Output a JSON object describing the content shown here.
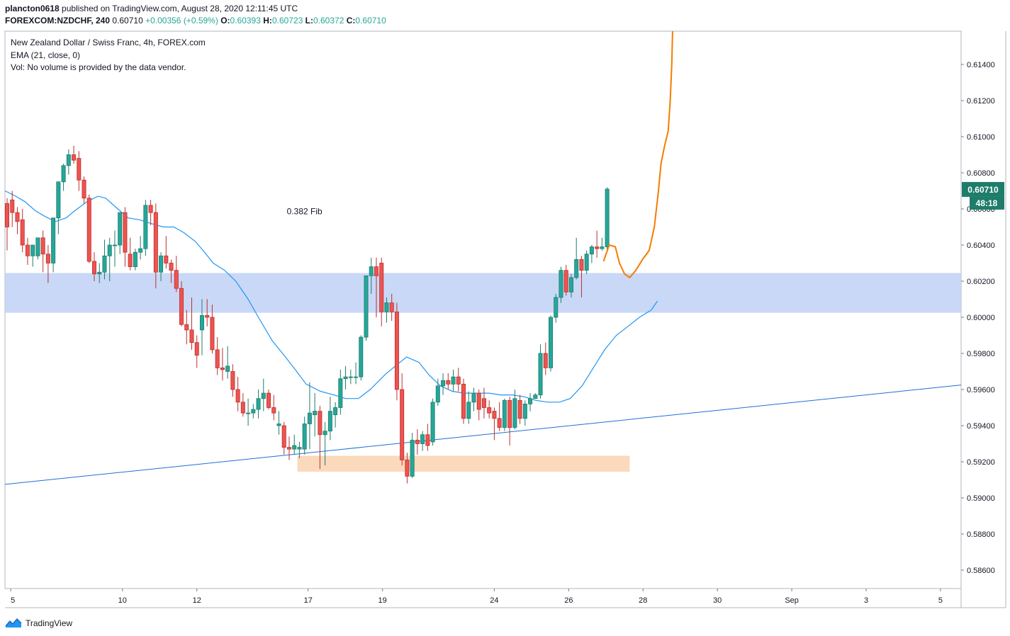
{
  "header": {
    "user": "plancton0618",
    "published": "published on TradingView.com, August 28, 2020 12:11:45 UTC",
    "symbol": "FOREXCOM:NZDCHF, 240",
    "last": "0.60710",
    "change": "+0.00356 (+0.59%)",
    "o_label": "O:",
    "o_value": "0.60393",
    "h_label": "H:",
    "h_value": "0.60723",
    "l_label": "L:",
    "l_value": "0.60372",
    "c_label": "C:",
    "c_value": "0.60710"
  },
  "legend": [
    "New Zealand Dollar / Swiss Franc, 4h, FOREX.com",
    "EMA (21, close, 0)",
    "Vol: No volume is provided by the data vendor."
  ],
  "footer": {
    "brand": "TradingView"
  },
  "colors": {
    "up": "#26a69a",
    "down": "#ef5350",
    "up_body": "#1e7d6a",
    "down_body": "#b7322f",
    "ema": "#2196f3",
    "trendline": "#1e6fd9",
    "projection": "#f57c00",
    "resistance_zone": "#c9d8f7",
    "support_zone": "#fbd9bb"
  },
  "chart_data": {
    "type": "candlestick",
    "timeframe": "4h",
    "ylim": [
      0.5848,
      0.6163
    ],
    "y_ticks": [
      "0.58600",
      "0.58800",
      "0.59000",
      "0.59200",
      "0.59400",
      "0.59600",
      "0.59800",
      "0.60000",
      "0.60200",
      "0.60400",
      "0.60600",
      "0.60800",
      "0.61000",
      "0.61200",
      "0.61400"
    ],
    "x_ticks": [
      {
        "label": "5",
        "i": 0.7
      },
      {
        "label": "10",
        "i": 22.5
      },
      {
        "label": "12",
        "i": 37
      },
      {
        "label": "17",
        "i": 58.7
      },
      {
        "label": "19",
        "i": 73.2
      },
      {
        "label": "24",
        "i": 95
      },
      {
        "label": "26",
        "i": 109.5
      },
      {
        "label": "28",
        "i": 124
      },
      {
        "label": "30",
        "i": 138.5
      },
      {
        "label": "Sep",
        "i": 153
      },
      {
        "label": "3",
        "i": 167.5
      },
      {
        "label": "5",
        "i": 182
      }
    ],
    "price_label": "0.60710",
    "countdown": "48:18",
    "annotations": [
      {
        "text": "0.382 Fib",
        "i": 58,
        "price": 0.6057
      }
    ],
    "zones": [
      {
        "type": "resistance",
        "i0": -0.4,
        "i1": 186,
        "price_top": 0.60245,
        "price_bottom": 0.60025
      },
      {
        "type": "support",
        "i0": 56.6,
        "i1": 121.4,
        "price_top": 0.59233,
        "price_bottom": 0.59145
      }
    ],
    "trendline": {
      "i0": -0.4,
      "p0": 0.59075,
      "i1": 186,
      "p1": 0.59625
    },
    "projection": [
      [
        116.3,
        0.6031
      ],
      [
        117.4,
        0.604
      ],
      [
        118.6,
        0.6039
      ],
      [
        119.4,
        0.603
      ],
      [
        120.4,
        0.6024
      ],
      [
        121.4,
        0.6022
      ],
      [
        122.6,
        0.6026
      ],
      [
        123.9,
        0.6032
      ],
      [
        125.2,
        0.6037
      ],
      [
        126.2,
        0.605
      ],
      [
        127.0,
        0.607
      ],
      [
        127.5,
        0.6085
      ],
      [
        128.2,
        0.6095
      ],
      [
        128.9,
        0.6103
      ],
      [
        129.3,
        0.612
      ],
      [
        129.6,
        0.614
      ],
      [
        129.8,
        0.6163
      ]
    ],
    "ema": [
      [
        -0.4,
        0.607
      ],
      [
        1.7,
        0.6067
      ],
      [
        3.5,
        0.6064
      ],
      [
        5.5,
        0.6059
      ],
      [
        7.3,
        0.6056
      ],
      [
        9.4,
        0.6053
      ],
      [
        11.5,
        0.6055
      ],
      [
        13.2,
        0.6059
      ],
      [
        15.6,
        0.6064
      ],
      [
        17.7,
        0.6067
      ],
      [
        19.2,
        0.6066
      ],
      [
        21.2,
        0.6061
      ],
      [
        23.6,
        0.6055
      ],
      [
        25.8,
        0.6054
      ],
      [
        28.0,
        0.6052
      ],
      [
        30.5,
        0.605
      ],
      [
        32.5,
        0.605
      ],
      [
        34.4,
        0.6047
      ],
      [
        36.7,
        0.6042
      ],
      [
        38.5,
        0.6036
      ],
      [
        40.2,
        0.603
      ],
      [
        42.4,
        0.6026
      ],
      [
        44.6,
        0.602
      ],
      [
        47.0,
        0.601
      ],
      [
        49.0,
        0.6
      ],
      [
        51.7,
        0.5987
      ],
      [
        54.0,
        0.5979
      ],
      [
        56.2,
        0.5971
      ],
      [
        58.3,
        0.5963
      ],
      [
        61.1,
        0.5959
      ],
      [
        63.7,
        0.5957
      ],
      [
        66.0,
        0.5955
      ],
      [
        68.5,
        0.5955
      ],
      [
        70.8,
        0.596
      ],
      [
        73.6,
        0.5968
      ],
      [
        76.1,
        0.5974
      ],
      [
        77.9,
        0.5978
      ],
      [
        80.3,
        0.5975
      ],
      [
        82.3,
        0.5968
      ],
      [
        84.5,
        0.5962
      ],
      [
        86.8,
        0.5959
      ],
      [
        89.1,
        0.5958
      ],
      [
        91.6,
        0.5958
      ],
      [
        94.0,
        0.5958
      ],
      [
        96.2,
        0.5957
      ],
      [
        98.5,
        0.5957
      ],
      [
        100.8,
        0.5956
      ],
      [
        103.1,
        0.5954
      ],
      [
        105.4,
        0.5953
      ],
      [
        107.7,
        0.5953
      ],
      [
        109.8,
        0.5955
      ],
      [
        112.1,
        0.5962
      ],
      [
        114.3,
        0.5972
      ],
      [
        116.5,
        0.5982
      ],
      [
        118.8,
        0.599
      ],
      [
        121.1,
        0.5995
      ],
      [
        123.3,
        0.6
      ],
      [
        125.6,
        0.6004
      ],
      [
        126.8,
        0.6009
      ]
    ],
    "candles": [
      {
        "i": 0,
        "o": 0.6063,
        "h": 0.6066,
        "l": 0.6037,
        "c": 0.605
      },
      {
        "i": 1,
        "o": 0.6065,
        "h": 0.607,
        "l": 0.605,
        "c": 0.6058
      },
      {
        "i": 2,
        "o": 0.6058,
        "h": 0.6061,
        "l": 0.6046,
        "c": 0.6053
      },
      {
        "i": 3,
        "o": 0.6054,
        "h": 0.606,
        "l": 0.6036,
        "c": 0.604
      },
      {
        "i": 4,
        "o": 0.604,
        "h": 0.6044,
        "l": 0.6029,
        "c": 0.6034
      },
      {
        "i": 5,
        "o": 0.6034,
        "h": 0.604,
        "l": 0.6028,
        "c": 0.604
      },
      {
        "i": 6,
        "o": 0.6034,
        "h": 0.6044,
        "l": 0.6032,
        "c": 0.6044
      },
      {
        "i": 7,
        "o": 0.6044,
        "h": 0.6048,
        "l": 0.6025,
        "c": 0.6035
      },
      {
        "i": 8,
        "o": 0.6035,
        "h": 0.604,
        "l": 0.6019,
        "c": 0.603
      },
      {
        "i": 9,
        "o": 0.603,
        "h": 0.6055,
        "l": 0.6025,
        "c": 0.6055
      },
      {
        "i": 10,
        "o": 0.6055,
        "h": 0.6075,
        "l": 0.6046,
        "c": 0.6075
      },
      {
        "i": 11,
        "o": 0.6075,
        "h": 0.6085,
        "l": 0.607,
        "c": 0.6084
      },
      {
        "i": 12,
        "o": 0.6084,
        "h": 0.6093,
        "l": 0.6079,
        "c": 0.609
      },
      {
        "i": 13,
        "o": 0.609,
        "h": 0.6095,
        "l": 0.6085,
        "c": 0.6087
      },
      {
        "i": 14,
        "o": 0.6088,
        "h": 0.6092,
        "l": 0.607,
        "c": 0.6076
      },
      {
        "i": 15,
        "o": 0.6076,
        "h": 0.6078,
        "l": 0.6063,
        "c": 0.6066
      },
      {
        "i": 16,
        "o": 0.6066,
        "h": 0.6068,
        "l": 0.603,
        "c": 0.6031
      },
      {
        "i": 17,
        "o": 0.6031,
        "h": 0.6036,
        "l": 0.602,
        "c": 0.6024
      },
      {
        "i": 18,
        "o": 0.6024,
        "h": 0.603,
        "l": 0.6019,
        "c": 0.6025
      },
      {
        "i": 19,
        "o": 0.6025,
        "h": 0.6043,
        "l": 0.6021,
        "c": 0.6034
      },
      {
        "i": 20,
        "o": 0.6034,
        "h": 0.6044,
        "l": 0.602,
        "c": 0.604
      },
      {
        "i": 21,
        "o": 0.604,
        "h": 0.6048,
        "l": 0.6028,
        "c": 0.604
      },
      {
        "i": 22,
        "o": 0.604,
        "h": 0.6058,
        "l": 0.6035,
        "c": 0.6058
      },
      {
        "i": 23,
        "o": 0.6058,
        "h": 0.6061,
        "l": 0.6028,
        "c": 0.6036
      },
      {
        "i": 24,
        "o": 0.6035,
        "h": 0.6044,
        "l": 0.6026,
        "c": 0.6028
      },
      {
        "i": 25,
        "o": 0.6028,
        "h": 0.6038,
        "l": 0.6026,
        "c": 0.6036
      },
      {
        "i": 26,
        "o": 0.6036,
        "h": 0.6045,
        "l": 0.6032,
        "c": 0.6038
      },
      {
        "i": 27,
        "o": 0.6038,
        "h": 0.6065,
        "l": 0.6034,
        "c": 0.6062
      },
      {
        "i": 28,
        "o": 0.6062,
        "h": 0.6065,
        "l": 0.6051,
        "c": 0.6058
      },
      {
        "i": 29,
        "o": 0.6058,
        "h": 0.6063,
        "l": 0.6016,
        "c": 0.6025
      },
      {
        "i": 30,
        "o": 0.6025,
        "h": 0.6036,
        "l": 0.602,
        "c": 0.6034
      },
      {
        "i": 31,
        "o": 0.6034,
        "h": 0.6045,
        "l": 0.6027,
        "c": 0.603
      },
      {
        "i": 32,
        "o": 0.603,
        "h": 0.6032,
        "l": 0.6019,
        "c": 0.6026
      },
      {
        "i": 33,
        "o": 0.6026,
        "h": 0.6034,
        "l": 0.6014,
        "c": 0.6016
      },
      {
        "i": 34,
        "o": 0.6016,
        "h": 0.602,
        "l": 0.5995,
        "c": 0.5996
      },
      {
        "i": 35,
        "o": 0.5996,
        "h": 0.6004,
        "l": 0.5985,
        "c": 0.5993
      },
      {
        "i": 36,
        "o": 0.5993,
        "h": 0.6011,
        "l": 0.5982,
        "c": 0.5986
      },
      {
        "i": 37,
        "o": 0.5986,
        "h": 0.599,
        "l": 0.5972,
        "c": 0.5979
      },
      {
        "i": 38,
        "o": 0.5993,
        "h": 0.601,
        "l": 0.5979,
        "c": 0.6001
      },
      {
        "i": 39,
        "o": 0.6001,
        "h": 0.601,
        "l": 0.5995,
        "c": 0.6
      },
      {
        "i": 40,
        "o": 0.6,
        "h": 0.6007,
        "l": 0.598,
        "c": 0.5982
      },
      {
        "i": 41,
        "o": 0.5982,
        "h": 0.5989,
        "l": 0.5968,
        "c": 0.5972
      },
      {
        "i": 42,
        "o": 0.5972,
        "h": 0.5983,
        "l": 0.5965,
        "c": 0.5971
      },
      {
        "i": 43,
        "o": 0.597,
        "h": 0.5984,
        "l": 0.5966,
        "c": 0.5973
      },
      {
        "i": 44,
        "o": 0.597,
        "h": 0.5974,
        "l": 0.5956,
        "c": 0.596
      },
      {
        "i": 45,
        "o": 0.596,
        "h": 0.5967,
        "l": 0.5948,
        "c": 0.5953
      },
      {
        "i": 46,
        "o": 0.5953,
        "h": 0.5958,
        "l": 0.5945,
        "c": 0.5947
      },
      {
        "i": 47,
        "o": 0.5947,
        "h": 0.5955,
        "l": 0.594,
        "c": 0.5947
      },
      {
        "i": 48,
        "o": 0.5947,
        "h": 0.5952,
        "l": 0.5944,
        "c": 0.5949
      },
      {
        "i": 49,
        "o": 0.5949,
        "h": 0.596,
        "l": 0.5944,
        "c": 0.5955
      },
      {
        "i": 50,
        "o": 0.5955,
        "h": 0.5966,
        "l": 0.5948,
        "c": 0.5958
      },
      {
        "i": 51,
        "o": 0.5958,
        "h": 0.596,
        "l": 0.5949,
        "c": 0.595
      },
      {
        "i": 52,
        "o": 0.595,
        "h": 0.5957,
        "l": 0.5943,
        "c": 0.5947
      },
      {
        "i": 53,
        "o": 0.594,
        "h": 0.5948,
        "l": 0.5935,
        "c": 0.5941
      },
      {
        "i": 54,
        "o": 0.594,
        "h": 0.5942,
        "l": 0.5924,
        "c": 0.5928
      },
      {
        "i": 55,
        "o": 0.5928,
        "h": 0.5934,
        "l": 0.5921,
        "c": 0.5927
      },
      {
        "i": 56,
        "o": 0.5927,
        "h": 0.5935,
        "l": 0.5924,
        "c": 0.5929
      },
      {
        "i": 57,
        "o": 0.5927,
        "h": 0.5931,
        "l": 0.5922,
        "c": 0.5928
      },
      {
        "i": 58,
        "o": 0.5927,
        "h": 0.5945,
        "l": 0.5924,
        "c": 0.5941
      },
      {
        "i": 59,
        "o": 0.5941,
        "h": 0.5964,
        "l": 0.5927,
        "c": 0.5947
      },
      {
        "i": 60,
        "o": 0.5946,
        "h": 0.5958,
        "l": 0.5934,
        "c": 0.5948
      },
      {
        "i": 61,
        "o": 0.5948,
        "h": 0.5951,
        "l": 0.5916,
        "c": 0.5935
      },
      {
        "i": 62,
        "o": 0.5935,
        "h": 0.5942,
        "l": 0.5918,
        "c": 0.5937
      },
      {
        "i": 63,
        "o": 0.5937,
        "h": 0.5956,
        "l": 0.5932,
        "c": 0.5948
      },
      {
        "i": 64,
        "o": 0.5946,
        "h": 0.5953,
        "l": 0.5939,
        "c": 0.595
      },
      {
        "i": 65,
        "o": 0.595,
        "h": 0.5971,
        "l": 0.5946,
        "c": 0.5966
      },
      {
        "i": 66,
        "o": 0.5966,
        "h": 0.5973,
        "l": 0.596,
        "c": 0.5967
      },
      {
        "i": 67,
        "o": 0.5967,
        "h": 0.5971,
        "l": 0.5963,
        "c": 0.5967
      },
      {
        "i": 68,
        "o": 0.5967,
        "h": 0.5975,
        "l": 0.5963,
        "c": 0.5967
      },
      {
        "i": 69,
        "o": 0.5967,
        "h": 0.599,
        "l": 0.5965,
        "c": 0.5989
      },
      {
        "i": 70,
        "o": 0.5989,
        "h": 0.6023,
        "l": 0.5987,
        "c": 0.6023
      },
      {
        "i": 71,
        "o": 0.6023,
        "h": 0.6033,
        "l": 0.6013,
        "c": 0.6028
      },
      {
        "i": 72,
        "o": 0.6028,
        "h": 0.6033,
        "l": 0.6,
        "c": 0.6023
      },
      {
        "i": 73,
        "o": 0.603,
        "h": 0.6033,
        "l": 0.5995,
        "c": 0.6003
      },
      {
        "i": 74,
        "o": 0.6003,
        "h": 0.6011,
        "l": 0.5997,
        "c": 0.6008
      },
      {
        "i": 75,
        "o": 0.6008,
        "h": 0.6013,
        "l": 0.5998,
        "c": 0.6003
      },
      {
        "i": 76,
        "o": 0.6003,
        "h": 0.6008,
        "l": 0.5954,
        "c": 0.596
      },
      {
        "i": 77,
        "o": 0.596,
        "h": 0.5969,
        "l": 0.5918,
        "c": 0.5921
      },
      {
        "i": 78,
        "o": 0.5921,
        "h": 0.5925,
        "l": 0.5908,
        "c": 0.5912
      },
      {
        "i": 79,
        "o": 0.5912,
        "h": 0.5936,
        "l": 0.5911,
        "c": 0.5932
      },
      {
        "i": 80,
        "o": 0.5932,
        "h": 0.5938,
        "l": 0.5924,
        "c": 0.593
      },
      {
        "i": 81,
        "o": 0.593,
        "h": 0.5937,
        "l": 0.5926,
        "c": 0.5935
      },
      {
        "i": 82,
        "o": 0.5935,
        "h": 0.5941,
        "l": 0.5926,
        "c": 0.5929
      },
      {
        "i": 83,
        "o": 0.5931,
        "h": 0.5955,
        "l": 0.5929,
        "c": 0.5953
      },
      {
        "i": 84,
        "o": 0.5953,
        "h": 0.5966,
        "l": 0.5951,
        "c": 0.5962
      },
      {
        "i": 85,
        "o": 0.5962,
        "h": 0.5969,
        "l": 0.5957,
        "c": 0.5965
      },
      {
        "i": 86,
        "o": 0.5965,
        "h": 0.5969,
        "l": 0.596,
        "c": 0.5963
      },
      {
        "i": 87,
        "o": 0.5963,
        "h": 0.5971,
        "l": 0.5959,
        "c": 0.5967
      },
      {
        "i": 88,
        "o": 0.5967,
        "h": 0.5972,
        "l": 0.5959,
        "c": 0.5963
      },
      {
        "i": 89,
        "o": 0.5963,
        "h": 0.5966,
        "l": 0.5941,
        "c": 0.5944
      },
      {
        "i": 90,
        "o": 0.5944,
        "h": 0.5959,
        "l": 0.5941,
        "c": 0.5953
      },
      {
        "i": 91,
        "o": 0.5953,
        "h": 0.5961,
        "l": 0.5948,
        "c": 0.5958
      },
      {
        "i": 92,
        "o": 0.5958,
        "h": 0.596,
        "l": 0.5943,
        "c": 0.5949
      },
      {
        "i": 93,
        "o": 0.5955,
        "h": 0.5961,
        "l": 0.5944,
        "c": 0.595
      },
      {
        "i": 94,
        "o": 0.595,
        "h": 0.5954,
        "l": 0.5944,
        "c": 0.5947
      },
      {
        "i": 95,
        "o": 0.5948,
        "h": 0.595,
        "l": 0.5932,
        "c": 0.5944
      },
      {
        "i": 96,
        "o": 0.5944,
        "h": 0.5953,
        "l": 0.5937,
        "c": 0.5939
      },
      {
        "i": 97,
        "o": 0.5939,
        "h": 0.5955,
        "l": 0.5937,
        "c": 0.5954
      },
      {
        "i": 98,
        "o": 0.5954,
        "h": 0.5956,
        "l": 0.5929,
        "c": 0.5939
      },
      {
        "i": 99,
        "o": 0.5939,
        "h": 0.596,
        "l": 0.5938,
        "c": 0.5955
      },
      {
        "i": 100,
        "o": 0.5954,
        "h": 0.5957,
        "l": 0.5941,
        "c": 0.5944
      },
      {
        "i": 101,
        "o": 0.5944,
        "h": 0.5954,
        "l": 0.594,
        "c": 0.5952
      },
      {
        "i": 102,
        "o": 0.5952,
        "h": 0.5958,
        "l": 0.5948,
        "c": 0.5955
      },
      {
        "i": 103,
        "o": 0.5955,
        "h": 0.5958,
        "l": 0.5955,
        "c": 0.5957
      },
      {
        "i": 104,
        "o": 0.5957,
        "h": 0.5985,
        "l": 0.5955,
        "c": 0.598
      },
      {
        "i": 105,
        "o": 0.598,
        "h": 0.5986,
        "l": 0.5968,
        "c": 0.5972
      },
      {
        "i": 106,
        "o": 0.5972,
        "h": 0.6001,
        "l": 0.597,
        "c": 0.6
      },
      {
        "i": 107,
        "o": 0.6,
        "h": 0.6013,
        "l": 0.5997,
        "c": 0.6011
      },
      {
        "i": 108,
        "o": 0.6011,
        "h": 0.6028,
        "l": 0.6008,
        "c": 0.6026
      },
      {
        "i": 109,
        "o": 0.6026,
        "h": 0.6029,
        "l": 0.6012,
        "c": 0.6014
      },
      {
        "i": 110,
        "o": 0.6014,
        "h": 0.6024,
        "l": 0.6011,
        "c": 0.6022
      },
      {
        "i": 111,
        "o": 0.6022,
        "h": 0.6044,
        "l": 0.6021,
        "c": 0.6032
      },
      {
        "i": 112,
        "o": 0.6032,
        "h": 0.6034,
        "l": 0.6011,
        "c": 0.6026
      },
      {
        "i": 113,
        "o": 0.6026,
        "h": 0.6037,
        "l": 0.6024,
        "c": 0.6035
      },
      {
        "i": 114,
        "o": 0.6035,
        "h": 0.604,
        "l": 0.603,
        "c": 0.6039
      },
      {
        "i": 115,
        "o": 0.6039,
        "h": 0.6048,
        "l": 0.6033,
        "c": 0.6038
      },
      {
        "i": 116,
        "o": 0.6038,
        "h": 0.6044,
        "l": 0.6037,
        "c": 0.6039
      },
      {
        "i": 117,
        "o": 0.6039,
        "h": 0.6072,
        "l": 0.6037,
        "c": 0.6071
      }
    ]
  }
}
